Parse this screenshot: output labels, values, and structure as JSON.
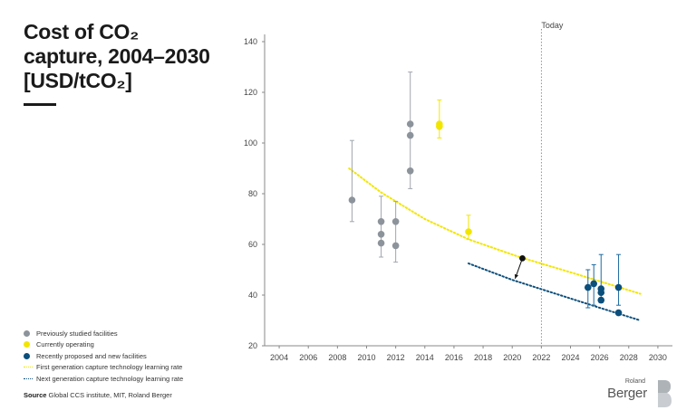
{
  "title": "Cost of CO₂ capture, 2004–2030 [USD/tCO₂]",
  "legend": [
    {
      "label": "Previously studied facilities",
      "kind": "dot",
      "color": "#8c939b"
    },
    {
      "label": "Currently operating",
      "kind": "dot",
      "color": "#f2e600"
    },
    {
      "label": "Recently proposed and new facilities",
      "kind": "dot",
      "color": "#0b4f7c"
    },
    {
      "label": "First generation capture technology learning rate",
      "kind": "line",
      "color": "#f2e600"
    },
    {
      "label": "Next generation capture technology learning rate",
      "kind": "line",
      "color": "#0b4f7c"
    }
  ],
  "source_label": "Source",
  "source_text": "Global CCS institute, MIT, Roland Berger",
  "brand": {
    "small": "Roland",
    "big": "Berger",
    "mark_icon": "roland-berger-logo-icon"
  },
  "chart_data": {
    "type": "scatter",
    "xlim": [
      2003,
      2031
    ],
    "ylim": [
      20,
      140
    ],
    "x_ticks": [
      2004,
      2006,
      2008,
      2010,
      2012,
      2014,
      2016,
      2018,
      2020,
      2022,
      2024,
      2026,
      2028,
      2030
    ],
    "y_ticks": [
      20,
      40,
      60,
      80,
      100,
      120,
      140
    ],
    "xlabel": "",
    "ylabel": "",
    "grid": false,
    "today": {
      "x": 2022,
      "label": "Today"
    },
    "series": [
      {
        "name": "Previously studied facilities",
        "color": "#8c939b",
        "points": [
          {
            "x": 2009,
            "y": 77.5
          },
          {
            "x": 2011,
            "y": 69
          },
          {
            "x": 2011,
            "y": 64
          },
          {
            "x": 2011,
            "y": 60.5
          },
          {
            "x": 2012,
            "y": 69
          },
          {
            "x": 2012,
            "y": 59.5
          },
          {
            "x": 2013,
            "y": 107.5
          },
          {
            "x": 2013,
            "y": 103
          },
          {
            "x": 2013,
            "y": 89
          }
        ],
        "error_bars": [
          {
            "x": 2009,
            "low": 69,
            "high": 101
          },
          {
            "x": 2011,
            "low": 55,
            "high": 79
          },
          {
            "x": 2012,
            "low": 53,
            "high": 77
          },
          {
            "x": 2013,
            "low": 82,
            "high": 128
          }
        ]
      },
      {
        "name": "Currently operating",
        "color": "#f2e600",
        "points": [
          {
            "x": 2015,
            "y": 106.5
          },
          {
            "x": 2015,
            "y": 107.5
          },
          {
            "x": 2017,
            "y": 65
          }
        ],
        "error_bars": [
          {
            "x": 2015,
            "low": 102,
            "high": 117
          },
          {
            "x": 2017,
            "low": 62,
            "high": 71.5
          }
        ]
      },
      {
        "name": "Recently proposed and new facilities",
        "color": "#0b4f7c",
        "points": [
          {
            "x": 2025.2,
            "y": 43
          },
          {
            "x": 2025.6,
            "y": 44.5
          },
          {
            "x": 2026.1,
            "y": 42.5
          },
          {
            "x": 2026.1,
            "y": 41
          },
          {
            "x": 2026.1,
            "y": 38
          },
          {
            "x": 2027.3,
            "y": 43
          },
          {
            "x": 2027.3,
            "y": 33
          }
        ],
        "error_bars": [
          {
            "x": 2025.2,
            "low": 35,
            "high": 50
          },
          {
            "x": 2025.6,
            "low": 36,
            "high": 52
          },
          {
            "x": 2026.1,
            "low": 37,
            "high": 56
          },
          {
            "x": 2027.3,
            "low": 36,
            "high": 56
          }
        ]
      }
    ],
    "trend_lines": [
      {
        "name": "First generation capture technology learning rate",
        "color": "#f2e600",
        "points": [
          [
            2008.8,
            90
          ],
          [
            2011,
            80.5
          ],
          [
            2014,
            70
          ],
          [
            2017,
            62
          ],
          [
            2020.5,
            55
          ],
          [
            2024,
            49
          ],
          [
            2028.8,
            40.5
          ]
        ]
      },
      {
        "name": "Next generation capture technology learning rate",
        "color": "#0b4f7c",
        "points": [
          [
            2017,
            52.5
          ],
          [
            2020,
            46
          ],
          [
            2023,
            40.5
          ],
          [
            2026,
            35
          ],
          [
            2028.8,
            30
          ]
        ]
      }
    ],
    "transition_marker": {
      "from": [
        2020.7,
        54.5
      ],
      "to": [
        2020.2,
        46.5
      ],
      "color": "#111111"
    }
  }
}
